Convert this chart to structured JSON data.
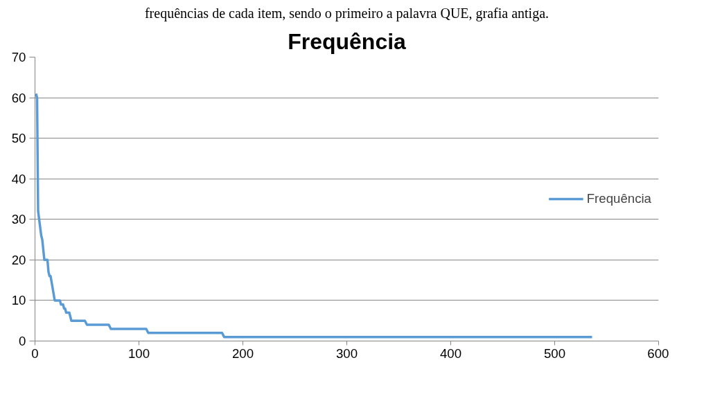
{
  "chart_data": {
    "type": "line",
    "title": "Frequência",
    "annotations": [
      "frequências de cada item, sendo o primeiro a palavra QUE, grafia antiga."
    ],
    "series": [
      {
        "name": "Frequência",
        "color": "#5b9bd5",
        "x": [
          1,
          2,
          3,
          5,
          6,
          7,
          9,
          12,
          13,
          14,
          15,
          19,
          24,
          25,
          27,
          28,
          29,
          30,
          33,
          35,
          48,
          50,
          71,
          73,
          107,
          109,
          180,
          182,
          536
        ],
        "values": [
          61,
          60,
          32,
          28,
          26,
          25,
          20,
          20,
          17,
          16,
          16,
          10,
          10,
          9,
          9,
          8,
          8,
          7,
          7,
          5,
          5,
          4,
          4,
          3,
          3,
          2,
          2,
          1,
          1
        ]
      }
    ],
    "xlim": [
      0,
      600
    ],
    "xticks": [
      0,
      100,
      200,
      300,
      400,
      500,
      600
    ],
    "ylim": [
      0,
      70
    ],
    "yticks": [
      0,
      10,
      20,
      30,
      40,
      50,
      60,
      70
    ],
    "grid": "y",
    "legend": "right",
    "marker": "none",
    "line_style": "solid"
  }
}
